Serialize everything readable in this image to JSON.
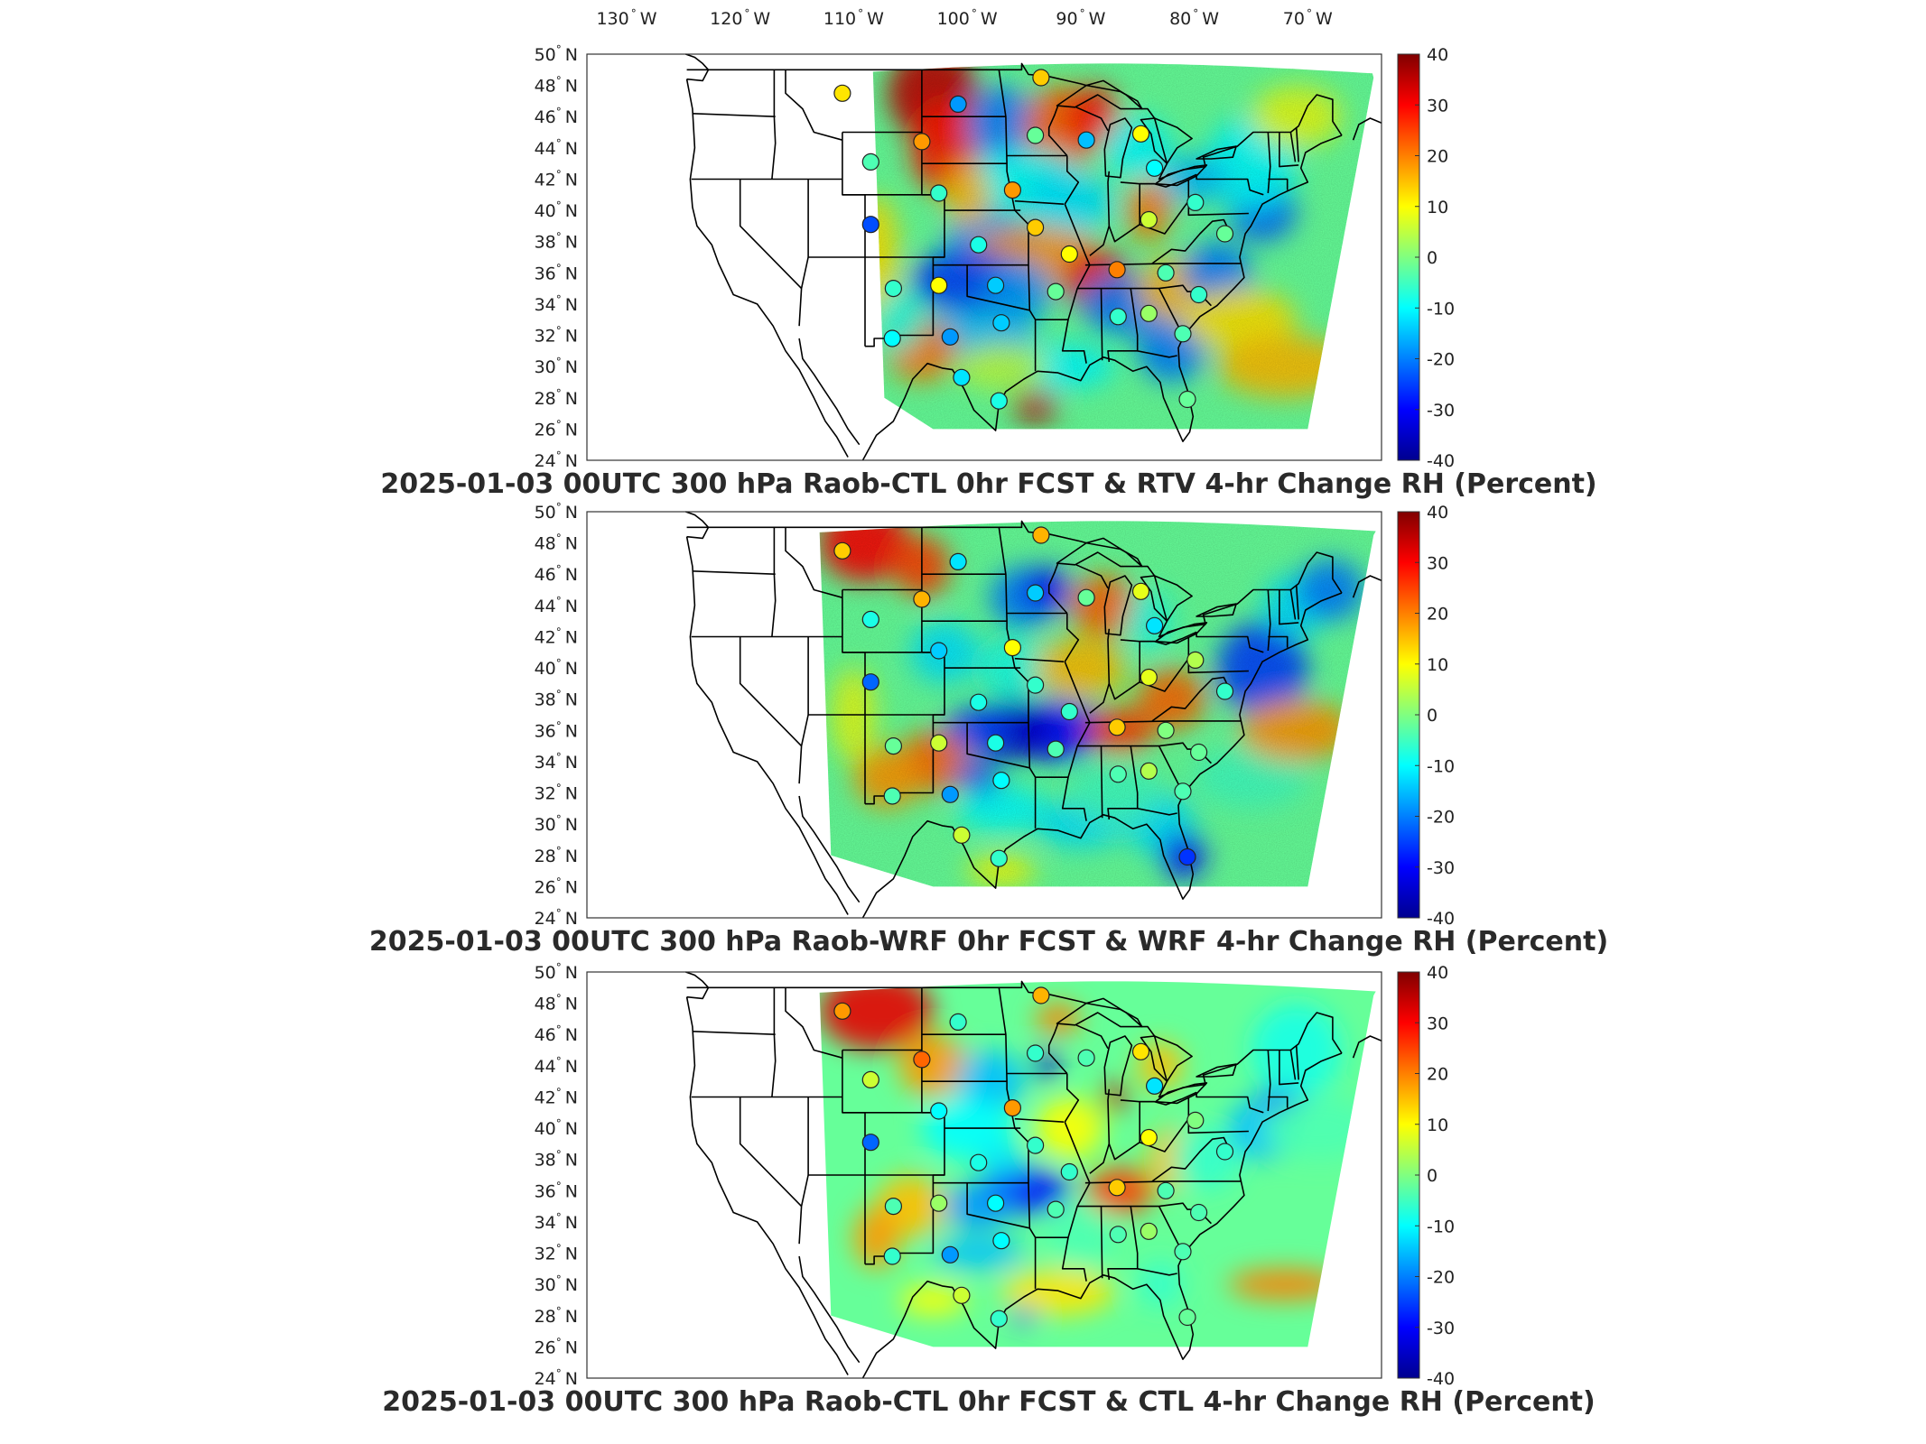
{
  "lon_labels": [
    "130",
    "120",
    "110",
    "100",
    "90",
    "80",
    "70"
  ],
  "lon_suffix": "W",
  "lat_labels": [
    "50",
    "48",
    "46",
    "44",
    "42",
    "40",
    "38",
    "36",
    "34",
    "32",
    "30",
    "28",
    "26",
    "24"
  ],
  "lat_suffix": "N",
  "degree_symbol": "°",
  "colorbar": {
    "ticks": [
      "40",
      "30",
      "20",
      "10",
      "0",
      "-10",
      "-20",
      "-30",
      "-40"
    ],
    "min": -40,
    "max": 40,
    "colormap": "jet"
  },
  "panels": [
    {
      "title": "2025-01-03 00UTC 300 hPa Raob-CTL 0hr FCST & RTV 4-hr Change RH (Percent)",
      "field_coverage": "east-of-108W",
      "stations": [
        {
          "lon": -111.0,
          "lat": 47.5,
          "value": 12
        },
        {
          "lon": -108.5,
          "lat": 43.1,
          "value": -4
        },
        {
          "lon": -108.5,
          "lat": 39.1,
          "value": -24
        },
        {
          "lon": -104.0,
          "lat": 44.4,
          "value": 18
        },
        {
          "lon": -100.8,
          "lat": 46.8,
          "value": -18
        },
        {
          "lon": -93.5,
          "lat": 48.5,
          "value": 14
        },
        {
          "lon": -94.0,
          "lat": 44.8,
          "value": -2
        },
        {
          "lon": -89.5,
          "lat": 44.5,
          "value": -15
        },
        {
          "lon": -84.7,
          "lat": 44.9,
          "value": 10
        },
        {
          "lon": -83.5,
          "lat": 42.7,
          "value": -10
        },
        {
          "lon": -102.5,
          "lat": 41.1,
          "value": -6
        },
        {
          "lon": -96.0,
          "lat": 41.3,
          "value": 18
        },
        {
          "lon": -99.0,
          "lat": 37.8,
          "value": -8
        },
        {
          "lon": -94.0,
          "lat": 38.9,
          "value": 14
        },
        {
          "lon": -91.0,
          "lat": 37.2,
          "value": 10
        },
        {
          "lon": -84.0,
          "lat": 39.4,
          "value": 6
        },
        {
          "lon": -79.9,
          "lat": 40.5,
          "value": -6
        },
        {
          "lon": -77.3,
          "lat": 38.5,
          "value": -2
        },
        {
          "lon": -106.5,
          "lat": 35.0,
          "value": -6
        },
        {
          "lon": -102.5,
          "lat": 35.2,
          "value": 10
        },
        {
          "lon": -97.5,
          "lat": 35.2,
          "value": -14
        },
        {
          "lon": -92.2,
          "lat": 34.8,
          "value": -2
        },
        {
          "lon": -86.8,
          "lat": 36.2,
          "value": 20
        },
        {
          "lon": -82.5,
          "lat": 36.0,
          "value": -4
        },
        {
          "lon": -79.6,
          "lat": 34.6,
          "value": -6
        },
        {
          "lon": -106.6,
          "lat": 31.8,
          "value": -10
        },
        {
          "lon": -101.5,
          "lat": 31.9,
          "value": -18
        },
        {
          "lon": -97.0,
          "lat": 32.8,
          "value": -14
        },
        {
          "lon": -86.7,
          "lat": 33.2,
          "value": -6
        },
        {
          "lon": -84.0,
          "lat": 33.4,
          "value": 2
        },
        {
          "lon": -81.0,
          "lat": 32.1,
          "value": -4
        },
        {
          "lon": -100.5,
          "lat": 29.3,
          "value": -12
        },
        {
          "lon": -97.2,
          "lat": 27.8,
          "value": -8
        },
        {
          "lon": -80.6,
          "lat": 27.9,
          "value": -2
        }
      ]
    },
    {
      "title": "2025-01-03 00UTC 300 hPa Raob-WRF 0hr FCST & WRF 4-hr Change RH (Percent)",
      "field_coverage": "east-of-113W",
      "stations": [
        {
          "lon": -111.0,
          "lat": 47.5,
          "value": 14
        },
        {
          "lon": -108.5,
          "lat": 43.1,
          "value": -8
        },
        {
          "lon": -108.5,
          "lat": 39.1,
          "value": -22
        },
        {
          "lon": -104.0,
          "lat": 44.4,
          "value": 16
        },
        {
          "lon": -100.8,
          "lat": 46.8,
          "value": -12
        },
        {
          "lon": -93.5,
          "lat": 48.5,
          "value": 16
        },
        {
          "lon": -94.0,
          "lat": 44.8,
          "value": -14
        },
        {
          "lon": -89.5,
          "lat": 44.5,
          "value": -2
        },
        {
          "lon": -84.7,
          "lat": 44.9,
          "value": 8
        },
        {
          "lon": -83.5,
          "lat": 42.7,
          "value": -12
        },
        {
          "lon": -102.5,
          "lat": 41.1,
          "value": -14
        },
        {
          "lon": -96.0,
          "lat": 41.3,
          "value": 10
        },
        {
          "lon": -99.0,
          "lat": 37.8,
          "value": -8
        },
        {
          "lon": -94.0,
          "lat": 38.9,
          "value": -6
        },
        {
          "lon": -91.0,
          "lat": 37.2,
          "value": -6
        },
        {
          "lon": -84.0,
          "lat": 39.4,
          "value": 8
        },
        {
          "lon": -79.9,
          "lat": 40.5,
          "value": 4
        },
        {
          "lon": -77.3,
          "lat": 38.5,
          "value": -6
        },
        {
          "lon": -106.5,
          "lat": 35.0,
          "value": -2
        },
        {
          "lon": -102.5,
          "lat": 35.2,
          "value": 6
        },
        {
          "lon": -97.5,
          "lat": 35.2,
          "value": -8
        },
        {
          "lon": -92.2,
          "lat": 34.8,
          "value": -4
        },
        {
          "lon": -86.8,
          "lat": 36.2,
          "value": 14
        },
        {
          "lon": -82.5,
          "lat": 36.0,
          "value": 0
        },
        {
          "lon": -79.6,
          "lat": 34.6,
          "value": -2
        },
        {
          "lon": -106.6,
          "lat": 31.8,
          "value": -4
        },
        {
          "lon": -101.5,
          "lat": 31.9,
          "value": -18
        },
        {
          "lon": -97.0,
          "lat": 32.8,
          "value": -10
        },
        {
          "lon": -86.7,
          "lat": 33.2,
          "value": -4
        },
        {
          "lon": -84.0,
          "lat": 33.4,
          "value": 4
        },
        {
          "lon": -81.0,
          "lat": 32.1,
          "value": -4
        },
        {
          "lon": -100.5,
          "lat": 29.3,
          "value": 6
        },
        {
          "lon": -97.2,
          "lat": 27.8,
          "value": -6
        },
        {
          "lon": -80.6,
          "lat": 27.9,
          "value": -26
        }
      ]
    },
    {
      "title": "2025-01-03 00UTC 300 hPa Raob-CTL 0hr FCST & CTL 4-hr Change RH (Percent)",
      "field_coverage": "east-of-113W",
      "stations": [
        {
          "lon": -111.0,
          "lat": 47.5,
          "value": 18
        },
        {
          "lon": -108.5,
          "lat": 43.1,
          "value": 6
        },
        {
          "lon": -108.5,
          "lat": 39.1,
          "value": -22
        },
        {
          "lon": -104.0,
          "lat": 44.4,
          "value": 22
        },
        {
          "lon": -100.8,
          "lat": 46.8,
          "value": -6
        },
        {
          "lon": -93.5,
          "lat": 48.5,
          "value": 16
        },
        {
          "lon": -94.0,
          "lat": 44.8,
          "value": -6
        },
        {
          "lon": -89.5,
          "lat": 44.5,
          "value": -4
        },
        {
          "lon": -84.7,
          "lat": 44.9,
          "value": 12
        },
        {
          "lon": -83.5,
          "lat": 42.7,
          "value": -12
        },
        {
          "lon": -102.5,
          "lat": 41.1,
          "value": -10
        },
        {
          "lon": -96.0,
          "lat": 41.3,
          "value": 18
        },
        {
          "lon": -99.0,
          "lat": 37.8,
          "value": -8
        },
        {
          "lon": -94.0,
          "lat": 38.9,
          "value": -6
        },
        {
          "lon": -91.0,
          "lat": 37.2,
          "value": -6
        },
        {
          "lon": -84.0,
          "lat": 39.4,
          "value": 10
        },
        {
          "lon": -79.9,
          "lat": 40.5,
          "value": 0
        },
        {
          "lon": -77.3,
          "lat": 38.5,
          "value": -6
        },
        {
          "lon": -106.5,
          "lat": 35.0,
          "value": -4
        },
        {
          "lon": -102.5,
          "lat": 35.2,
          "value": 2
        },
        {
          "lon": -97.5,
          "lat": 35.2,
          "value": -10
        },
        {
          "lon": -92.2,
          "lat": 34.8,
          "value": -4
        },
        {
          "lon": -86.8,
          "lat": 36.2,
          "value": 14
        },
        {
          "lon": -82.5,
          "lat": 36.0,
          "value": -4
        },
        {
          "lon": -79.6,
          "lat": 34.6,
          "value": -4
        },
        {
          "lon": -106.6,
          "lat": 31.8,
          "value": -6
        },
        {
          "lon": -101.5,
          "lat": 31.9,
          "value": -18
        },
        {
          "lon": -97.0,
          "lat": 32.8,
          "value": -10
        },
        {
          "lon": -86.7,
          "lat": 33.2,
          "value": -4
        },
        {
          "lon": -84.0,
          "lat": 33.4,
          "value": 2
        },
        {
          "lon": -81.0,
          "lat": 32.1,
          "value": -4
        },
        {
          "lon": -100.5,
          "lat": 29.3,
          "value": 6
        },
        {
          "lon": -97.2,
          "lat": 27.8,
          "value": -6
        },
        {
          "lon": -80.6,
          "lat": 27.9,
          "value": -2
        }
      ]
    }
  ]
}
